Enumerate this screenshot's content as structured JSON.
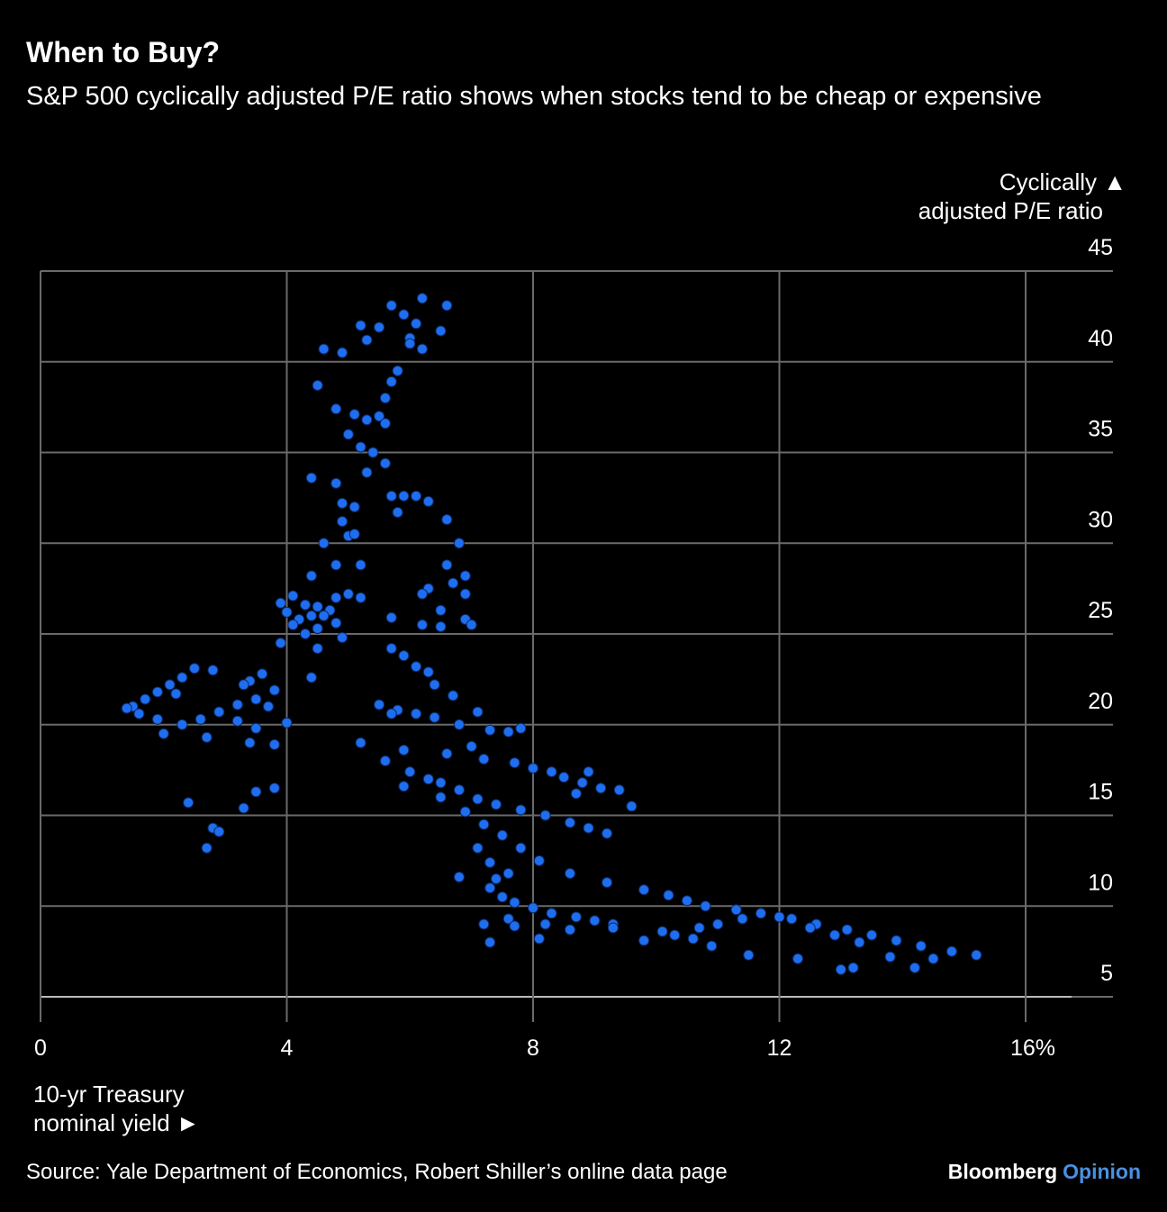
{
  "header": {
    "title": "When to Buy?",
    "subtitle": "S&P 500 cyclically adjusted P/E ratio shows when stocks tend to be cheap or expensive"
  },
  "axes": {
    "y_label_line1": "Cyclically ▲",
    "y_label_line2": "adjusted P/E ratio",
    "x_label_line1": "10-yr Treasury",
    "x_label_line2": "nominal yield ►"
  },
  "footer": {
    "source": "Source: Yale Department of Economics, Robert Shiller’s online data page",
    "brand_main": "Bloomberg",
    "brand_sub": "Opinion"
  },
  "colors": {
    "background": "#000000",
    "dots": "#1f6ef0",
    "grid": "#6a6a6a",
    "accent": "#4a90e2"
  },
  "chart_data": {
    "type": "scatter",
    "xlim": [
      0,
      16
    ],
    "ylim": [
      5,
      45
    ],
    "x_ticks": [
      "0",
      "4",
      "8",
      "12",
      "16%"
    ],
    "y_ticks": [
      "5",
      "10",
      "15",
      "20",
      "25",
      "30",
      "35",
      "40",
      "45"
    ],
    "grid": true,
    "series": [
      {
        "points": [
          [
            5.7,
            43.1
          ],
          [
            6.2,
            43.5
          ],
          [
            6.6,
            43.1
          ],
          [
            5.9,
            42.6
          ],
          [
            6.1,
            42.1
          ],
          [
            5.2,
            42.0
          ],
          [
            5.5,
            41.9
          ],
          [
            6.5,
            41.7
          ],
          [
            6.0,
            41.3
          ],
          [
            5.3,
            41.2
          ],
          [
            6.0,
            41.0
          ],
          [
            6.2,
            40.7
          ],
          [
            4.6,
            40.7
          ],
          [
            4.9,
            40.5
          ],
          [
            5.8,
            39.5
          ],
          [
            5.7,
            38.9
          ],
          [
            4.5,
            38.7
          ],
          [
            5.6,
            38.0
          ],
          [
            4.8,
            37.4
          ],
          [
            5.1,
            37.1
          ],
          [
            5.3,
            36.8
          ],
          [
            5.5,
            37.0
          ],
          [
            5.6,
            36.6
          ],
          [
            5.0,
            36.0
          ],
          [
            5.2,
            35.3
          ],
          [
            5.4,
            35.0
          ],
          [
            5.6,
            34.4
          ],
          [
            4.4,
            33.6
          ],
          [
            4.8,
            33.3
          ],
          [
            5.3,
            33.9
          ],
          [
            5.7,
            32.6
          ],
          [
            5.9,
            32.6
          ],
          [
            6.1,
            32.6
          ],
          [
            6.3,
            32.3
          ],
          [
            4.9,
            32.2
          ],
          [
            5.1,
            32.0
          ],
          [
            5.8,
            31.7
          ],
          [
            4.9,
            31.2
          ],
          [
            6.6,
            31.3
          ],
          [
            5.0,
            30.4
          ],
          [
            5.1,
            30.5
          ],
          [
            4.6,
            30.0
          ],
          [
            6.8,
            30.0
          ],
          [
            4.8,
            28.8
          ],
          [
            5.2,
            28.8
          ],
          [
            6.6,
            28.8
          ],
          [
            4.4,
            28.2
          ],
          [
            6.9,
            28.2
          ],
          [
            6.7,
            27.8
          ],
          [
            6.3,
            27.5
          ],
          [
            5.0,
            27.2
          ],
          [
            5.2,
            27.0
          ],
          [
            6.2,
            27.2
          ],
          [
            4.8,
            27.0
          ],
          [
            6.9,
            27.2
          ],
          [
            4.1,
            27.1
          ],
          [
            3.9,
            26.7
          ],
          [
            4.3,
            26.6
          ],
          [
            4.5,
            26.5
          ],
          [
            4.7,
            26.3
          ],
          [
            6.5,
            26.3
          ],
          [
            4.0,
            26.2
          ],
          [
            4.4,
            26.0
          ],
          [
            4.6,
            26.0
          ],
          [
            5.7,
            25.9
          ],
          [
            4.2,
            25.8
          ],
          [
            4.8,
            25.6
          ],
          [
            4.1,
            25.5
          ],
          [
            4.5,
            25.3
          ],
          [
            6.2,
            25.5
          ],
          [
            6.5,
            25.4
          ],
          [
            6.9,
            25.8
          ],
          [
            7.0,
            25.5
          ],
          [
            4.3,
            25.0
          ],
          [
            4.9,
            24.8
          ],
          [
            3.9,
            24.5
          ],
          [
            4.5,
            24.2
          ],
          [
            5.7,
            24.2
          ],
          [
            5.9,
            23.8
          ],
          [
            6.1,
            23.2
          ],
          [
            6.3,
            22.9
          ],
          [
            3.6,
            22.8
          ],
          [
            3.4,
            22.4
          ],
          [
            3.3,
            22.2
          ],
          [
            4.4,
            22.6
          ],
          [
            6.4,
            22.2
          ],
          [
            6.7,
            21.6
          ],
          [
            3.8,
            21.9
          ],
          [
            3.5,
            21.4
          ],
          [
            3.2,
            21.1
          ],
          [
            2.9,
            20.7
          ],
          [
            3.7,
            21.0
          ],
          [
            5.5,
            21.1
          ],
          [
            5.8,
            20.8
          ],
          [
            6.1,
            20.6
          ],
          [
            7.1,
            20.7
          ],
          [
            2.6,
            20.3
          ],
          [
            2.3,
            20.0
          ],
          [
            1.9,
            20.3
          ],
          [
            3.2,
            20.2
          ],
          [
            3.5,
            19.8
          ],
          [
            4.0,
            20.1
          ],
          [
            6.4,
            20.4
          ],
          [
            6.8,
            20.0
          ],
          [
            7.3,
            19.7
          ],
          [
            7.6,
            19.6
          ],
          [
            7.8,
            19.8
          ],
          [
            2.0,
            19.5
          ],
          [
            2.7,
            19.3
          ],
          [
            3.4,
            19.0
          ],
          [
            3.8,
            18.9
          ],
          [
            5.2,
            19.0
          ],
          [
            5.9,
            18.6
          ],
          [
            6.6,
            18.4
          ],
          [
            7.2,
            18.1
          ],
          [
            7.7,
            17.9
          ],
          [
            8.0,
            17.6
          ],
          [
            8.3,
            17.4
          ],
          [
            8.5,
            17.1
          ],
          [
            8.8,
            16.8
          ],
          [
            9.1,
            16.5
          ],
          [
            9.4,
            16.4
          ],
          [
            5.6,
            18.0
          ],
          [
            6.0,
            17.4
          ],
          [
            6.3,
            17.0
          ],
          [
            6.8,
            16.4
          ],
          [
            7.1,
            15.9
          ],
          [
            7.4,
            15.6
          ],
          [
            7.8,
            15.3
          ],
          [
            8.2,
            15.0
          ],
          [
            8.6,
            14.6
          ],
          [
            8.9,
            14.3
          ],
          [
            9.2,
            14.0
          ],
          [
            5.9,
            16.6
          ],
          [
            6.5,
            16.0
          ],
          [
            6.9,
            15.2
          ],
          [
            7.2,
            14.5
          ],
          [
            7.5,
            13.9
          ],
          [
            7.8,
            13.2
          ],
          [
            8.1,
            12.5
          ],
          [
            8.6,
            11.8
          ],
          [
            9.2,
            11.3
          ],
          [
            2.4,
            15.7
          ],
          [
            2.8,
            14.3
          ],
          [
            3.3,
            15.4
          ],
          [
            3.5,
            16.3
          ],
          [
            3.8,
            16.5
          ],
          [
            1.5,
            21.0
          ],
          [
            1.7,
            21.4
          ],
          [
            1.9,
            21.8
          ],
          [
            2.1,
            22.2
          ],
          [
            2.3,
            22.6
          ],
          [
            1.6,
            20.6
          ],
          [
            2.5,
            23.1
          ],
          [
            2.8,
            23.0
          ],
          [
            1.4,
            20.9
          ],
          [
            2.2,
            21.7
          ],
          [
            7.3,
            11.0
          ],
          [
            7.5,
            10.5
          ],
          [
            7.7,
            10.2
          ],
          [
            8.0,
            9.9
          ],
          [
            8.3,
            9.6
          ],
          [
            8.7,
            9.4
          ],
          [
            9.0,
            9.2
          ],
          [
            9.3,
            9.0
          ],
          [
            7.2,
            9.0
          ],
          [
            7.6,
            9.3
          ],
          [
            8.2,
            9.0
          ],
          [
            9.8,
            10.9
          ],
          [
            10.2,
            10.6
          ],
          [
            10.5,
            10.3
          ],
          [
            10.8,
            10.0
          ],
          [
            11.3,
            9.8
          ],
          [
            11.7,
            9.6
          ],
          [
            12.2,
            9.3
          ],
          [
            12.6,
            9.0
          ],
          [
            13.1,
            8.7
          ],
          [
            13.5,
            8.4
          ],
          [
            13.9,
            8.1
          ],
          [
            14.3,
            7.8
          ],
          [
            14.8,
            7.5
          ],
          [
            15.2,
            7.3
          ],
          [
            9.8,
            8.1
          ],
          [
            10.3,
            8.4
          ],
          [
            10.7,
            8.8
          ],
          [
            11.0,
            9.0
          ],
          [
            11.4,
            9.3
          ],
          [
            12.0,
            9.4
          ],
          [
            12.5,
            8.8
          ],
          [
            12.9,
            8.4
          ],
          [
            13.3,
            8.0
          ],
          [
            13.8,
            7.2
          ],
          [
            14.2,
            6.6
          ],
          [
            13.2,
            6.6
          ],
          [
            14.5,
            7.1
          ],
          [
            12.3,
            7.1
          ],
          [
            11.5,
            7.3
          ],
          [
            10.6,
            8.2
          ],
          [
            10.9,
            7.8
          ],
          [
            7.3,
            8.0
          ],
          [
            8.1,
            8.2
          ],
          [
            8.6,
            8.7
          ],
          [
            9.3,
            8.8
          ],
          [
            10.1,
            8.6
          ],
          [
            13.0,
            6.5
          ],
          [
            7.1,
            13.2
          ],
          [
            7.3,
            12.4
          ],
          [
            7.6,
            11.8
          ],
          [
            7.4,
            11.5
          ],
          [
            6.8,
            11.6
          ],
          [
            2.9,
            14.1
          ],
          [
            2.7,
            13.2
          ],
          [
            7.7,
            8.9
          ],
          [
            9.6,
            15.5
          ],
          [
            8.9,
            17.4
          ],
          [
            8.7,
            16.2
          ],
          [
            6.5,
            16.8
          ],
          [
            5.7,
            20.6
          ],
          [
            7.0,
            18.8
          ]
        ]
      }
    ]
  }
}
